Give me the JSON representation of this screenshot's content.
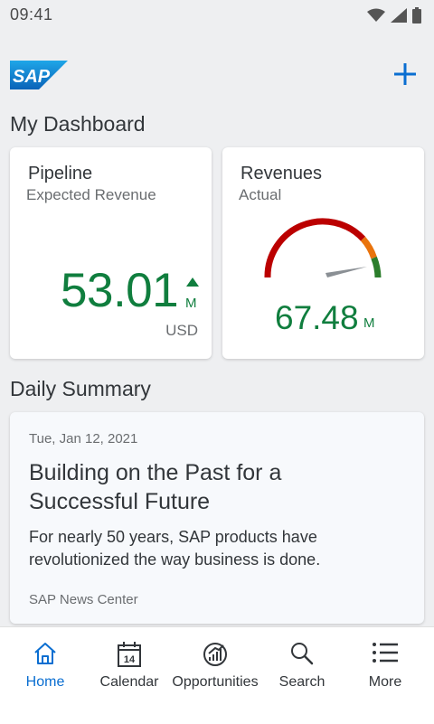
{
  "status_bar": {
    "time": "09:41"
  },
  "header": {
    "logo_text": "SAP"
  },
  "dashboard": {
    "title": "My Dashboard",
    "pipeline": {
      "title": "Pipeline",
      "subtitle": "Expected Revenue",
      "value": "53.01",
      "scale": "M",
      "unit": "USD",
      "trend": "up"
    },
    "revenues": {
      "title": "Revenues",
      "subtitle": "Actual",
      "value": "67.48",
      "scale": "M"
    }
  },
  "summary": {
    "title": "Daily Summary",
    "news": {
      "date": "Tue, Jan 12,  2021",
      "headline": "Building on the Past for a Successful Future",
      "body": "For nearly 50 years, SAP products have revolutionized the way business is done.",
      "source": "SAP News Center"
    }
  },
  "bottom_nav": {
    "items": [
      {
        "label": "Home",
        "icon": "home-icon",
        "active": true
      },
      {
        "label": "Calendar",
        "icon": "calendar-icon",
        "badge": "14"
      },
      {
        "label": "Opportunities",
        "icon": "opportunities-icon"
      },
      {
        "label": "Search",
        "icon": "search-icon"
      },
      {
        "label": "More",
        "icon": "more-list-icon"
      }
    ]
  },
  "colors": {
    "accent": "#0a6ed1",
    "positive": "#107e3e",
    "gauge_red": "#bb0000",
    "gauge_orange": "#e9730c",
    "gauge_green": "#2b7d2b"
  }
}
